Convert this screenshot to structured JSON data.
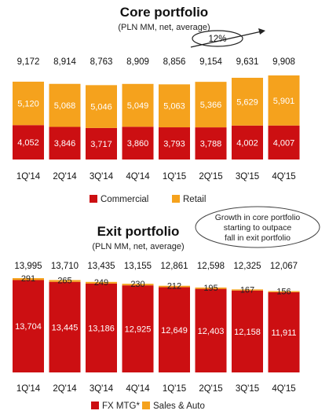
{
  "colors": {
    "commercial": "#cc0f12",
    "retail": "#f5a21d",
    "fx_mtg": "#cc0f12",
    "sales_auto": "#f5a21d"
  },
  "growth_label": "12%",
  "note_text": [
    "Growth in core portfolio",
    "starting to outpace",
    "fall in exit portfolio"
  ],
  "chart_data": [
    {
      "type": "bar",
      "stacked": true,
      "title": "Core portfolio",
      "subtitle": "(PLN MM, net, average)",
      "categories": [
        "1Q'14",
        "2Q'14",
        "3Q'14",
        "4Q'14",
        "1Q'15",
        "2Q'15",
        "3Q'15",
        "4Q'15"
      ],
      "totals": [
        "9,172",
        "8,914",
        "8,763",
        "8,909",
        "8,856",
        "9,154",
        "9,631",
        "9,908"
      ],
      "series": [
        {
          "name": "Commercial",
          "values": [
            4052,
            3846,
            3717,
            3860,
            3793,
            3788,
            4002,
            4007
          ],
          "labels": [
            "4,052",
            "3,846",
            "3,717",
            "3,860",
            "3,793",
            "3,788",
            "4,002",
            "4,007"
          ]
        },
        {
          "name": "Retail",
          "values": [
            5120,
            5068,
            5046,
            5049,
            5063,
            5366,
            5629,
            5901
          ],
          "labels": [
            "5,120",
            "5,068",
            "5,046",
            "5,049",
            "5,063",
            "5,366",
            "5,629",
            "5,901"
          ]
        }
      ],
      "legend_position": "bottom",
      "grid": false
    },
    {
      "type": "bar",
      "stacked": true,
      "title": "Exit portfolio",
      "subtitle": "(PLN MM, net, average)",
      "categories": [
        "1Q'14",
        "2Q'14",
        "3Q'14",
        "4Q'14",
        "1Q'15",
        "2Q'15",
        "3Q'15",
        "4Q'15"
      ],
      "totals": [
        "13,995",
        "13,710",
        "13,435",
        "13,155",
        "12,861",
        "12,598",
        "12,325",
        "12,067"
      ],
      "series": [
        {
          "name": "FX MTG*",
          "values": [
            13704,
            13445,
            13186,
            12925,
            12649,
            12403,
            12158,
            11911
          ],
          "labels": [
            "13,704",
            "13,445",
            "13,186",
            "12,925",
            "12,649",
            "12,403",
            "12,158",
            "11,911"
          ]
        },
        {
          "name": "Sales & Auto",
          "values": [
            291,
            265,
            249,
            230,
            212,
            195,
            167,
            156
          ],
          "labels": [
            "291",
            "265",
            "249",
            "230",
            "212",
            "195",
            "167",
            "156"
          ]
        }
      ],
      "legend_position": "bottom",
      "grid": false
    }
  ]
}
